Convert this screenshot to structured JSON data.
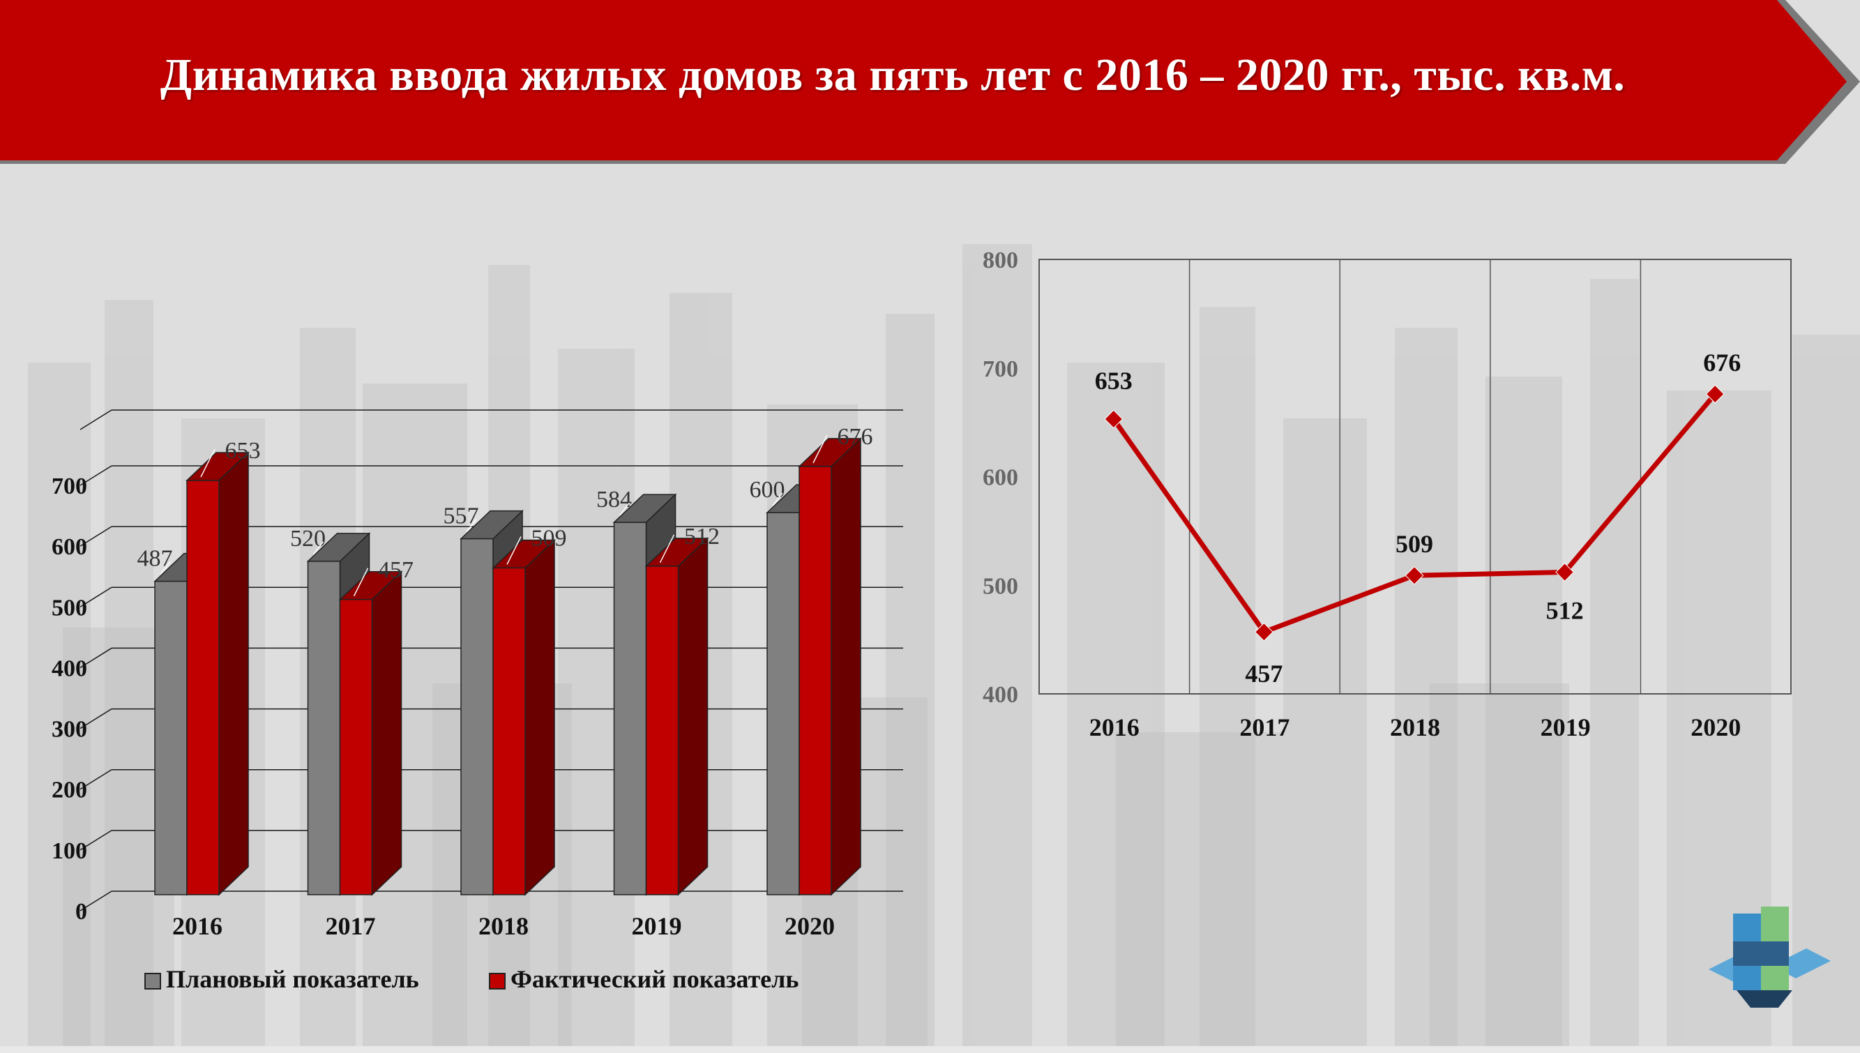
{
  "title": "Динамика ввода жилых домов за пять лет с 2016 – 2020 гг., тыс. кв.м.",
  "colors": {
    "banner": "#c00000",
    "plan_bar": "#808080",
    "fact_bar": "#c00000",
    "line": "#c00000"
  },
  "chart_data": [
    {
      "type": "bar",
      "categories": [
        "2016",
        "2017",
        "2018",
        "2019",
        "2020"
      ],
      "series": [
        {
          "name": "Плановый показатель",
          "values": [
            487,
            520,
            557,
            584,
            600
          ]
        },
        {
          "name": "Фактический показатель",
          "values": [
            653,
            457,
            509,
            512,
            676
          ]
        }
      ],
      "yticks": [
        "0",
        "100",
        "200",
        "300",
        "400",
        "500",
        "600",
        "700"
      ],
      "ylim": [
        0,
        700
      ],
      "grid": true,
      "legend": "bottom",
      "view": "3d"
    },
    {
      "type": "line",
      "categories": [
        "2016",
        "2017",
        "2018",
        "2019",
        "2020"
      ],
      "values": [
        653,
        457,
        509,
        512,
        676
      ],
      "yticks": [
        "400",
        "500",
        "600",
        "700",
        "800"
      ],
      "ylim": [
        400,
        800
      ],
      "grid": true
    }
  ]
}
